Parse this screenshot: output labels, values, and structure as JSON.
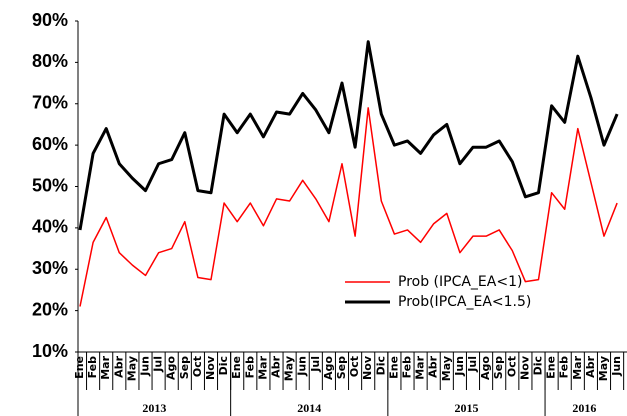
{
  "chart_data": {
    "type": "line",
    "groups": [
      {
        "label": "2013",
        "categories": [
          "Ene",
          "Feb",
          "Mar",
          "Abr",
          "May",
          "Jun",
          "Jul",
          "Ago",
          "Sep",
          "Oct",
          "Nov",
          "Dic"
        ]
      },
      {
        "label": "2014",
        "categories": [
          "Ene",
          "Feb",
          "Mar",
          "Abr",
          "May",
          "Jun",
          "Jul",
          "Ago",
          "Sep",
          "Oct",
          "Nov",
          "Dic"
        ]
      },
      {
        "label": "2015",
        "categories": [
          "Ene",
          "Feb",
          "Mar",
          "Abr",
          "May",
          "Jun",
          "Jul",
          "Ago",
          "Sep",
          "Oct",
          "Nov",
          "Dic"
        ]
      },
      {
        "label": "2016",
        "categories": [
          "Ene",
          "Feb",
          "Mar",
          "Abr",
          "May",
          "Jun"
        ]
      }
    ],
    "series": [
      {
        "name": "Prob (IPCA_EA<1)",
        "color": "#ff0000",
        "width": 1.5,
        "values": [
          21,
          36.5,
          42.5,
          34,
          31,
          28.5,
          34,
          35,
          41.5,
          28,
          27.5,
          46,
          41.5,
          46,
          40.5,
          47,
          46.5,
          51.5,
          47,
          41.5,
          55.5,
          38,
          69,
          46.5,
          38.5,
          39.5,
          36.5,
          41,
          43.5,
          34,
          38,
          38,
          39.5,
          34.5,
          27,
          27.5,
          48.5,
          44.5,
          64,
          51,
          38,
          46
        ]
      },
      {
        "name": "Prob(IPCA_EA<1.5)",
        "color": "#000000",
        "width": 3,
        "values": [
          39.5,
          58,
          64,
          55.5,
          52,
          49,
          55.5,
          56.5,
          63,
          49,
          48.5,
          67.5,
          63,
          67.5,
          62,
          68,
          67.5,
          72.5,
          68.5,
          63,
          75,
          59.5,
          85,
          67.5,
          60,
          61,
          58,
          62.5,
          65,
          55.5,
          59.5,
          59.5,
          61,
          56,
          47.5,
          48.5,
          69.5,
          65.5,
          81.5,
          71.5,
          60,
          67.5
        ]
      }
    ],
    "ylim": [
      10,
      90
    ],
    "yticks": [
      {
        "value": 10,
        "label": "10%"
      },
      {
        "value": 20,
        "label": "20%"
      },
      {
        "value": 30,
        "label": "30%"
      },
      {
        "value": 40,
        "label": "40%"
      },
      {
        "value": 50,
        "label": "50%"
      },
      {
        "value": 60,
        "label": "60%"
      },
      {
        "value": 70,
        "label": "70%"
      },
      {
        "value": 80,
        "label": "80%"
      },
      {
        "value": 90,
        "label": "90%"
      }
    ],
    "legend": "lower right"
  }
}
